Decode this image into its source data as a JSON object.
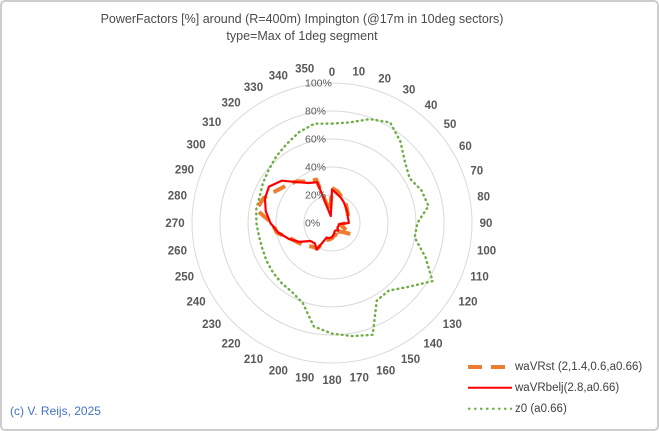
{
  "title": {
    "line1": "PowerFactors [%] around (R=400m) Impington (@17m in 10deg sectors)",
    "line2": "type=Max of 1deg segment"
  },
  "credit": "(c) V. Reijs, 2025",
  "colors": {
    "grid": "#d9d9d9",
    "angle_label": "#595959",
    "radial_label": "#595959",
    "title_text": "#4a4a4a",
    "legend_text": "#404040",
    "credit_blue": "#4472c4",
    "series_orange": "#ed7d31",
    "series_red": "#ff0000",
    "series_green": "#70ad47"
  },
  "chart_data": {
    "type": "radar",
    "title": "PowerFactors [%] around (R=400m) Impington (@17m in 10deg sectors) type=Max of 1deg segment",
    "angles_deg": [
      0,
      10,
      20,
      30,
      40,
      50,
      60,
      70,
      80,
      90,
      100,
      110,
      120,
      130,
      140,
      150,
      160,
      170,
      180,
      190,
      200,
      210,
      220,
      230,
      240,
      250,
      260,
      270,
      280,
      290,
      300,
      310,
      320,
      330,
      340,
      350
    ],
    "radial_axis": {
      "unit": "%",
      "min": 0,
      "max": 100,
      "ticks": [
        "0%",
        "20%",
        "40%",
        "60%",
        "80%",
        "100%"
      ],
      "gridlines": "circles"
    },
    "legend_position": "bottom-right",
    "series": [
      {
        "name": "waVRst (2,1.4,0.6,a0.66)",
        "color": "#ed7d31",
        "style": "dashed",
        "values": [
          25,
          23,
          20,
          18,
          16,
          14,
          13,
          12,
          11,
          10,
          6,
          8,
          16,
          10,
          8,
          12,
          9,
          9,
          11,
          12,
          13,
          21,
          22,
          25,
          28,
          32,
          40,
          43,
          55,
          52,
          46,
          42,
          39,
          34,
          33,
          8
        ]
      },
      {
        "name": "waVRbelj(2.8,a0.66)",
        "color": "#ff0000",
        "style": "solid",
        "values": [
          24,
          21,
          19,
          17,
          15,
          14,
          13,
          12,
          12,
          12,
          5,
          5,
          5,
          5,
          7,
          6,
          6,
          8,
          10,
          11,
          11,
          22,
          19,
          20,
          27,
          33,
          39,
          44,
          48,
          51,
          52,
          47,
          38,
          33,
          31,
          5
        ]
      },
      {
        "name": "z0 (a0.66)",
        "color": "#70ad47",
        "style": "dotted",
        "values": [
          71,
          73,
          79,
          83,
          76,
          68,
          64,
          68,
          70,
          61,
          60,
          71,
          83,
          71,
          63,
          64,
          85,
          82,
          79,
          75,
          61,
          57,
          56,
          55,
          54,
          53,
          53,
          54,
          55,
          55,
          57,
          59,
          62,
          65,
          69,
          72
        ]
      }
    ]
  }
}
